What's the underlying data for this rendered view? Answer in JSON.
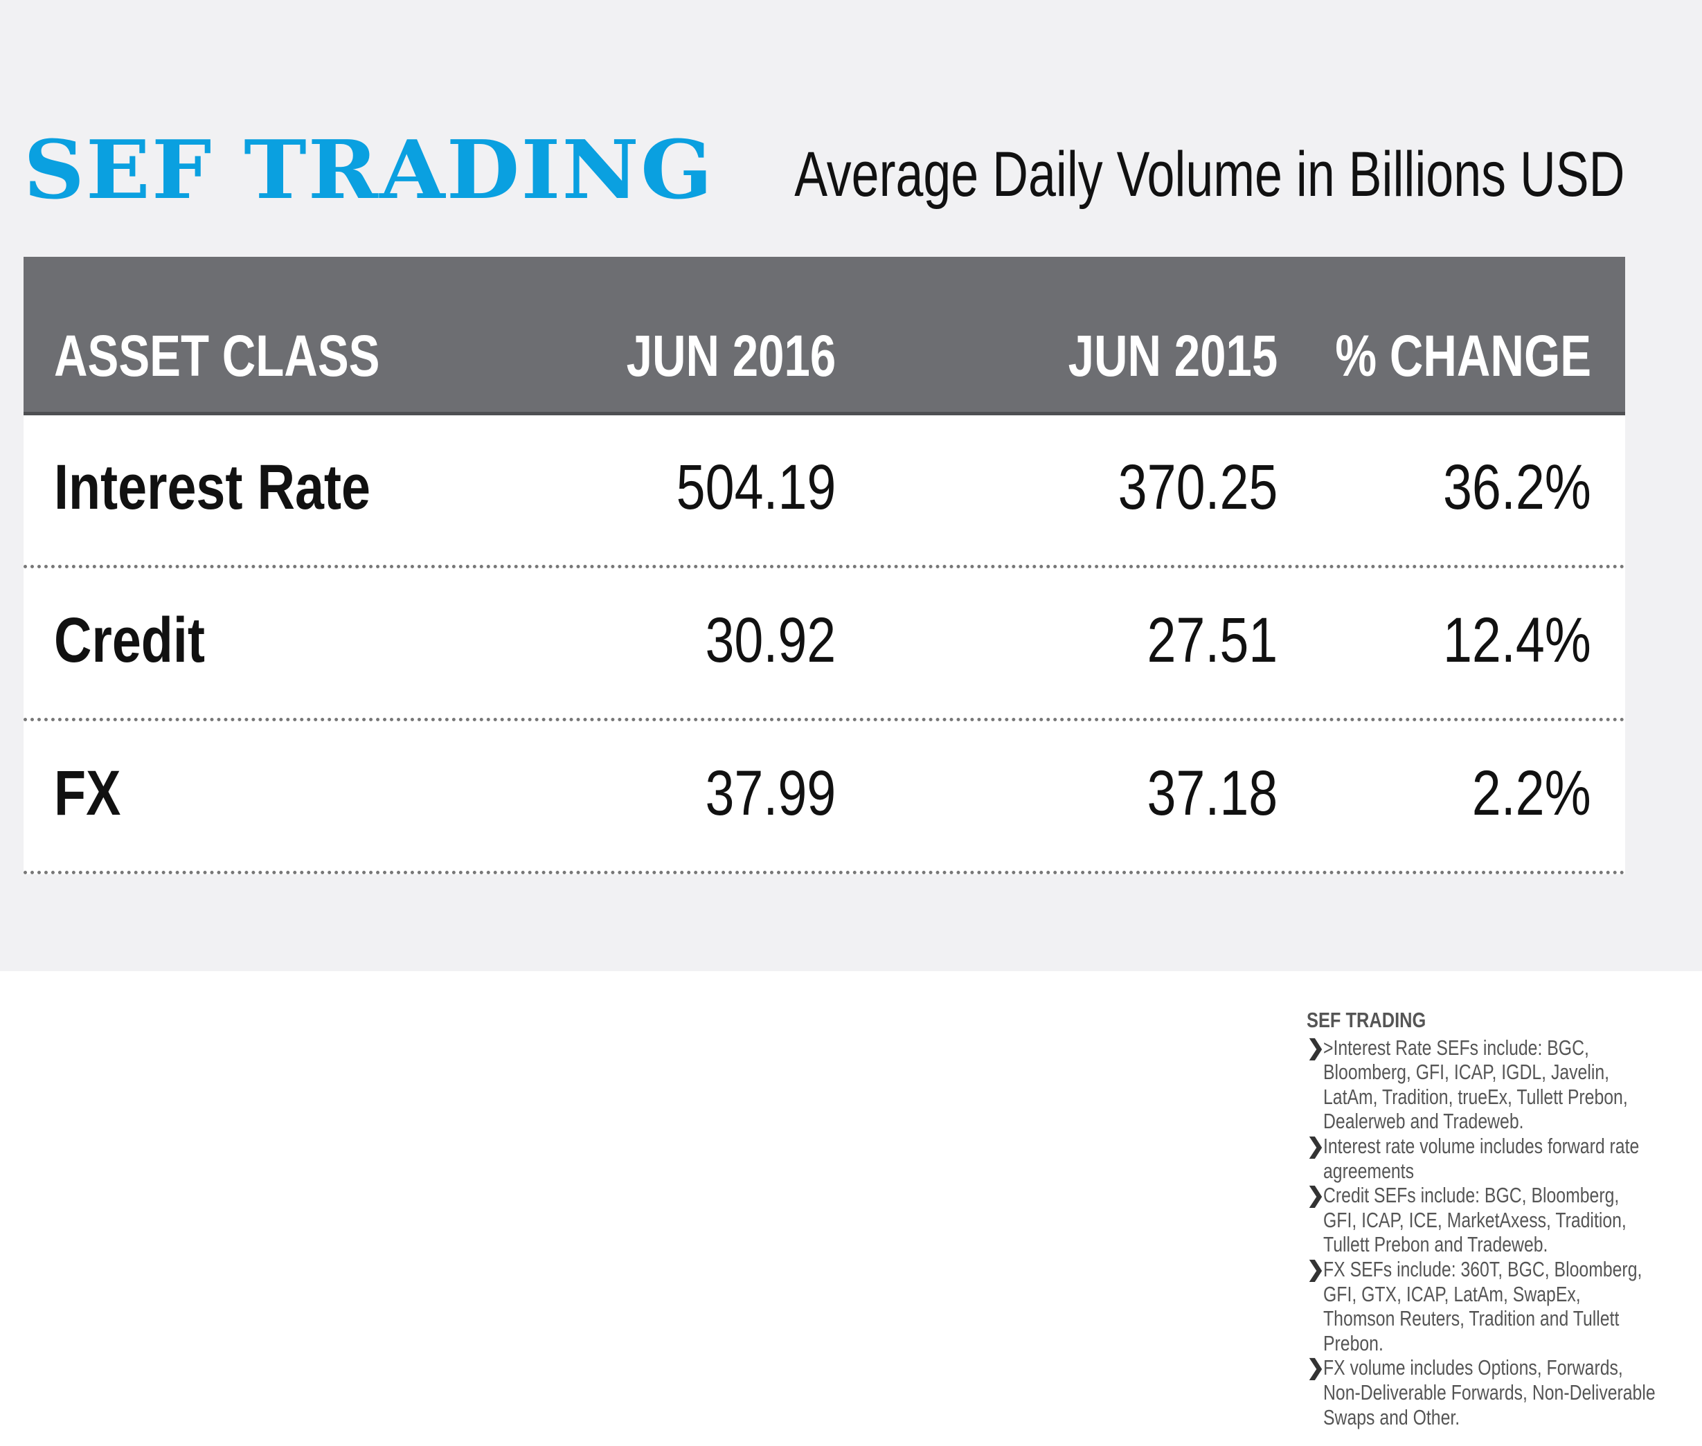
{
  "header": {
    "title": "SEF TRADING",
    "subtitle": "Average Daily Volume in Billions USD"
  },
  "table": {
    "columns": [
      "ASSET CLASS",
      "JUN 2016",
      "JUN 2015",
      "% CHANGE"
    ],
    "rows": [
      {
        "asset": "Interest Rate",
        "jun2016": "504.19",
        "jun2015": "370.25",
        "change": "36.2%"
      },
      {
        "asset": "Credit",
        "jun2016": "30.92",
        "jun2015": "27.51",
        "change": "12.4%"
      },
      {
        "asset": "FX",
        "jun2016": "37.99",
        "jun2015": "37.18",
        "change": "2.2%"
      }
    ]
  },
  "notes": {
    "heading": "SEF TRADING",
    "bullet_icon": "chevron-right-icon",
    "items": [
      ">Interest Rate SEFs include: BGC, Bloomberg, GFI, ICAP, IGDL, Javelin, LatAm, Tradition, trueEx, Tullett Prebon, Dealerweb and Tradeweb.",
      "Interest rate volume includes forward rate agreements",
      "Credit SEFs include: BGC, Bloomberg, GFI, ICAP, ICE, MarketAxess, Tradition, Tullett Prebon and Tradeweb.",
      "FX SEFs include: 360T, BGC, Bloomberg, GFI, GTX, ICAP, LatAm, SwapEx, Thomson Reuters, Tradition and Tullett Prebon.",
      "FX volume includes Options, Forwards, Non-Deliverable Forwards, Non-Deliverable Swaps and Other."
    ]
  },
  "colors": {
    "accent": "#0aa0e0",
    "header_bg": "#6d6e72",
    "page_bg": "#f1f1f3"
  }
}
